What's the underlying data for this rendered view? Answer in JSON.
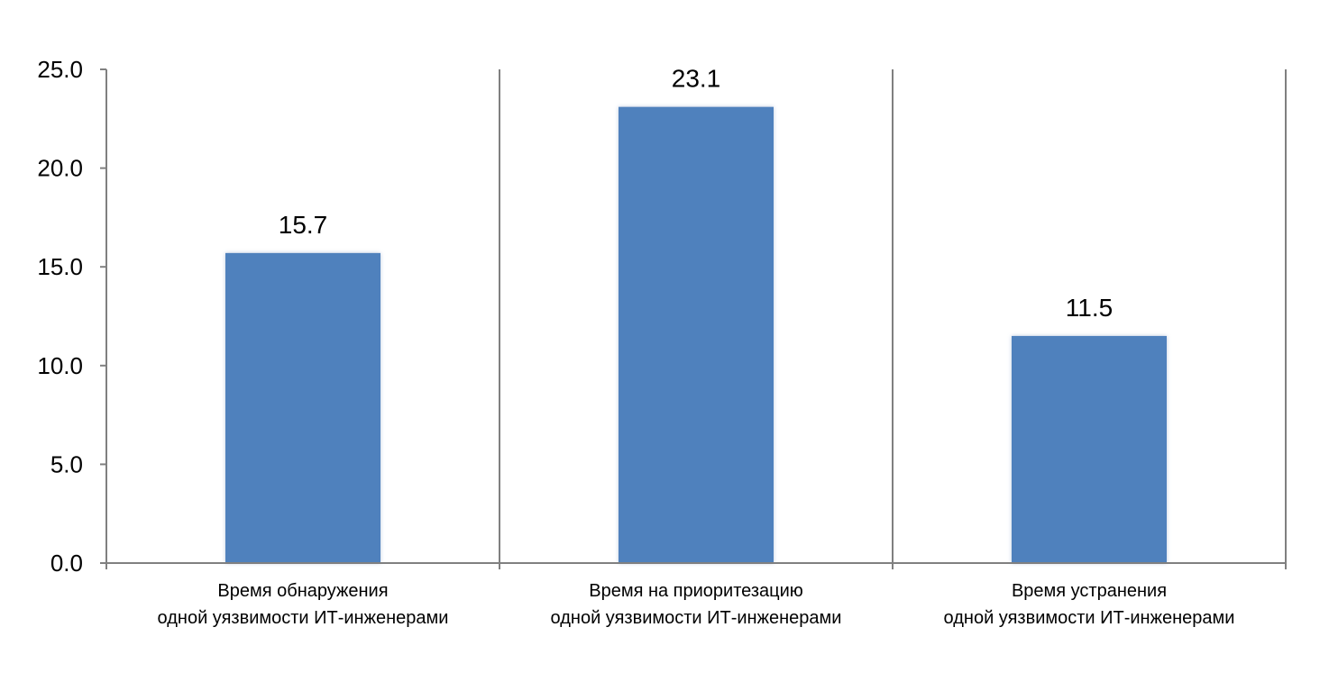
{
  "chart_data": {
    "type": "bar",
    "title": "",
    "xlabel": "",
    "ylabel": "",
    "categories": [
      [
        "Время обнаружения",
        "одной уязвимости ИТ-инженерами"
      ],
      [
        "Время на приоритезацию",
        "одной уязвимости ИТ-инженерами"
      ],
      [
        "Время устранения",
        "одной уязвимости ИТ-инженерами"
      ]
    ],
    "values": [
      15.7,
      23.1,
      11.5
    ],
    "value_labels": [
      "15.7",
      "23.1",
      "11.5"
    ],
    "ylim": [
      0,
      25
    ],
    "yticks": [
      0,
      5,
      10,
      15,
      20,
      25
    ],
    "ytick_labels": [
      "0.0",
      "5.0",
      "10.0",
      "15.0",
      "20.0",
      "25.0"
    ],
    "grid": false,
    "legend": "none",
    "bar_color": "#4f81bd",
    "axis_color": "#808080"
  }
}
